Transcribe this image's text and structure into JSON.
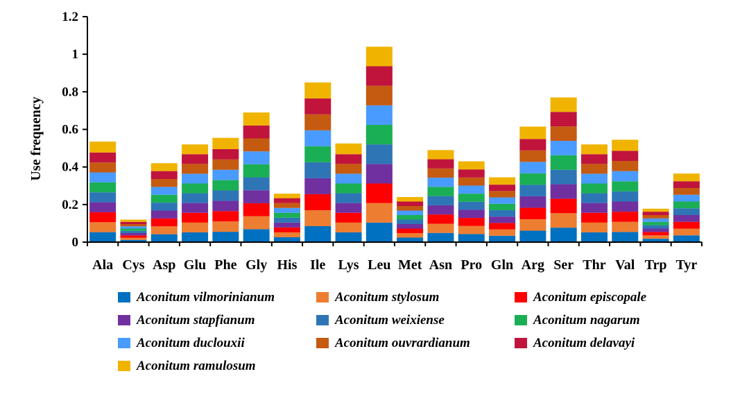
{
  "chart_data": {
    "type": "bar",
    "stacked": true,
    "title": "",
    "xlabel": "",
    "ylabel": "Use frequency",
    "ylim": [
      0,
      1.2
    ],
    "yticks": [
      "0",
      "0.2",
      "0.4",
      "0.6",
      "0.8",
      "1",
      "1.2"
    ],
    "ytick_values": [
      0,
      0.2,
      0.4,
      0.6,
      0.8,
      1.0,
      1.2
    ],
    "categories": [
      "Ala",
      "Cys",
      "Asp",
      "Glu",
      "Phe",
      "Gly",
      "His",
      "Ile",
      "Lys",
      "Leu",
      "Met",
      "Asn",
      "Pro",
      "Gln",
      "Arg",
      "Ser",
      "Thr",
      "Val",
      "Trp",
      "Tyr"
    ],
    "totals": [
      0.535,
      0.12,
      0.42,
      0.52,
      0.555,
      0.69,
      0.258,
      0.85,
      0.525,
      1.04,
      0.24,
      0.49,
      0.43,
      0.345,
      0.615,
      0.77,
      0.52,
      0.545,
      0.178,
      0.365
    ],
    "series": [
      {
        "name": "Aconitum vilmorinianum",
        "color": "#0070C0",
        "values": [
          0.053,
          0.012,
          0.042,
          0.052,
          0.055,
          0.069,
          0.026,
          0.085,
          0.052,
          0.104,
          0.024,
          0.049,
          0.043,
          0.034,
          0.061,
          0.077,
          0.052,
          0.054,
          0.018,
          0.036
        ]
      },
      {
        "name": "Aconitum stylosum",
        "color": "#ED7D31",
        "values": [
          0.053,
          0.012,
          0.042,
          0.052,
          0.055,
          0.069,
          0.026,
          0.085,
          0.052,
          0.104,
          0.024,
          0.049,
          0.043,
          0.034,
          0.061,
          0.077,
          0.052,
          0.054,
          0.018,
          0.036
        ]
      },
      {
        "name": "Aconitum episcopale",
        "color": "#FF0000",
        "values": [
          0.053,
          0.012,
          0.042,
          0.052,
          0.055,
          0.069,
          0.026,
          0.085,
          0.052,
          0.104,
          0.024,
          0.049,
          0.043,
          0.034,
          0.061,
          0.077,
          0.052,
          0.054,
          0.018,
          0.036
        ]
      },
      {
        "name": "Aconitum stapfianum",
        "color": "#7030A0",
        "values": [
          0.053,
          0.012,
          0.042,
          0.052,
          0.055,
          0.069,
          0.026,
          0.085,
          0.052,
          0.104,
          0.024,
          0.049,
          0.043,
          0.034,
          0.061,
          0.077,
          0.052,
          0.054,
          0.018,
          0.036
        ]
      },
      {
        "name": "Aconitum weixiense",
        "color": "#2E75B6",
        "values": [
          0.053,
          0.012,
          0.042,
          0.052,
          0.055,
          0.069,
          0.026,
          0.085,
          0.052,
          0.104,
          0.024,
          0.049,
          0.043,
          0.034,
          0.061,
          0.077,
          0.052,
          0.054,
          0.018,
          0.036
        ]
      },
      {
        "name": "Aconitum nagarum",
        "color": "#1AAF54",
        "values": [
          0.053,
          0.012,
          0.042,
          0.052,
          0.055,
          0.069,
          0.026,
          0.085,
          0.052,
          0.104,
          0.024,
          0.049,
          0.043,
          0.034,
          0.061,
          0.077,
          0.052,
          0.054,
          0.018,
          0.036
        ]
      },
      {
        "name": "Aconitum duclouxii",
        "color": "#4A9BFF",
        "values": [
          0.053,
          0.012,
          0.042,
          0.052,
          0.055,
          0.069,
          0.026,
          0.085,
          0.052,
          0.104,
          0.024,
          0.049,
          0.043,
          0.034,
          0.061,
          0.077,
          0.052,
          0.054,
          0.018,
          0.036
        ]
      },
      {
        "name": "Aconitum ouvrardianum",
        "color": "#C55A11",
        "values": [
          0.053,
          0.012,
          0.042,
          0.052,
          0.055,
          0.069,
          0.026,
          0.085,
          0.052,
          0.104,
          0.024,
          0.049,
          0.043,
          0.034,
          0.061,
          0.077,
          0.052,
          0.054,
          0.018,
          0.036
        ]
      },
      {
        "name": "Aconitum delavayi",
        "color": "#C0143C",
        "values": [
          0.053,
          0.012,
          0.042,
          0.052,
          0.055,
          0.069,
          0.026,
          0.085,
          0.052,
          0.104,
          0.024,
          0.049,
          0.043,
          0.034,
          0.061,
          0.077,
          0.052,
          0.054,
          0.018,
          0.036
        ]
      },
      {
        "name": "Aconitum ramulosum",
        "color": "#F0B400",
        "values": [
          0.058,
          0.012,
          0.042,
          0.052,
          0.06,
          0.069,
          0.024,
          0.085,
          0.057,
          0.104,
          0.024,
          0.049,
          0.043,
          0.039,
          0.066,
          0.077,
          0.052,
          0.059,
          0.016,
          0.041
        ]
      }
    ],
    "legend_position": "bottom"
  }
}
